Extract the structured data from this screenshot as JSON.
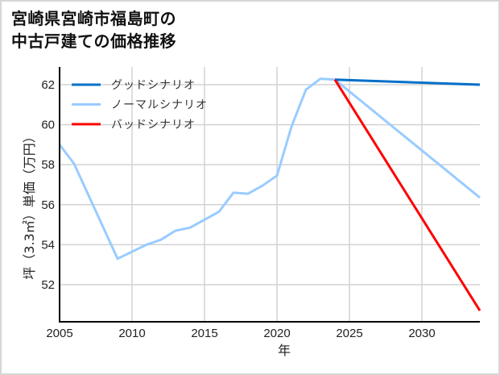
{
  "title": {
    "line1": "宮崎県宮崎市福島町の",
    "line2": "中古戸建ての価格推移"
  },
  "chart_data": {
    "type": "line",
    "title": "宮崎県宮崎市福島町の中古戸建ての価格推移",
    "xlabel": "年",
    "ylabel": "坪（3.3㎡）単価（万円）",
    "xlim": [
      2005,
      2034
    ],
    "ylim": [
      50.4,
      63.2
    ],
    "x_ticks": [
      2005,
      2010,
      2015,
      2020,
      2025,
      2030
    ],
    "y_ticks": [
      52,
      54,
      56,
      58,
      60,
      62
    ],
    "grid": true,
    "legend_position": "upper left",
    "series": [
      {
        "name": "グッドシナリオ",
        "color": "#0070c8",
        "x": [
          2024,
          2034
        ],
        "values": [
          62.25,
          62.0
        ]
      },
      {
        "name": "ノーマルシナリオ",
        "color": "#99ccff",
        "x": [
          2005,
          2006,
          2009,
          2011,
          2012,
          2013,
          2014,
          2015,
          2016,
          2017,
          2018,
          2019,
          2020,
          2021,
          2022,
          2023,
          2024,
          2034
        ],
        "values": [
          59.0,
          58.05,
          53.3,
          54.0,
          54.25,
          54.7,
          54.85,
          55.25,
          55.65,
          56.6,
          56.55,
          56.95,
          57.45,
          59.9,
          61.75,
          62.3,
          62.25,
          56.35
        ]
      },
      {
        "name": "バッドシナリオ",
        "color": "#ff0000",
        "x": [
          2024,
          2034
        ],
        "values": [
          62.25,
          50.7
        ]
      }
    ]
  }
}
